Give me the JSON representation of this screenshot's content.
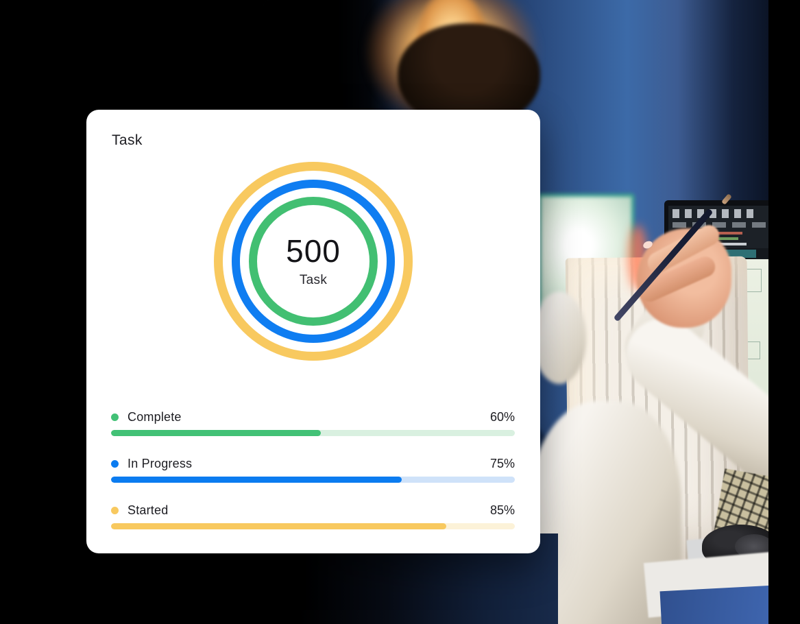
{
  "page": {
    "background": "#000000"
  },
  "photo": {
    "description": "Person in a white sweater working late in a dark blue office, holding a pencil near a CAD monitor, with a lamp glow, white foam board, keyboard and mouse on the desk"
  },
  "card": {
    "title": "Task",
    "center": {
      "value": "500",
      "label": "Task"
    },
    "colors": {
      "green": "#42C176",
      "blue": "#0B7CF0",
      "yellow": "#F8C95F"
    },
    "rings": [
      {
        "name": "started",
        "color": "#F8C95F"
      },
      {
        "name": "in-progress",
        "color": "#0F7DF1"
      },
      {
        "name": "complete",
        "color": "#42BF72"
      }
    ],
    "bars": [
      {
        "label": "Complete",
        "percent": "60%",
        "value": 60,
        "fill_percent": 52,
        "color": "#42C176",
        "track_color": "#D9F0E0"
      },
      {
        "label": "In Progress",
        "percent": "75%",
        "value": 75,
        "fill_percent": 72,
        "color": "#0B7CF0",
        "track_color": "#CFE2F9"
      },
      {
        "label": "Started",
        "percent": "85%",
        "value": 85,
        "fill_percent": 83,
        "color": "#F8C95F",
        "track_color": "#FCF2D8"
      }
    ]
  }
}
